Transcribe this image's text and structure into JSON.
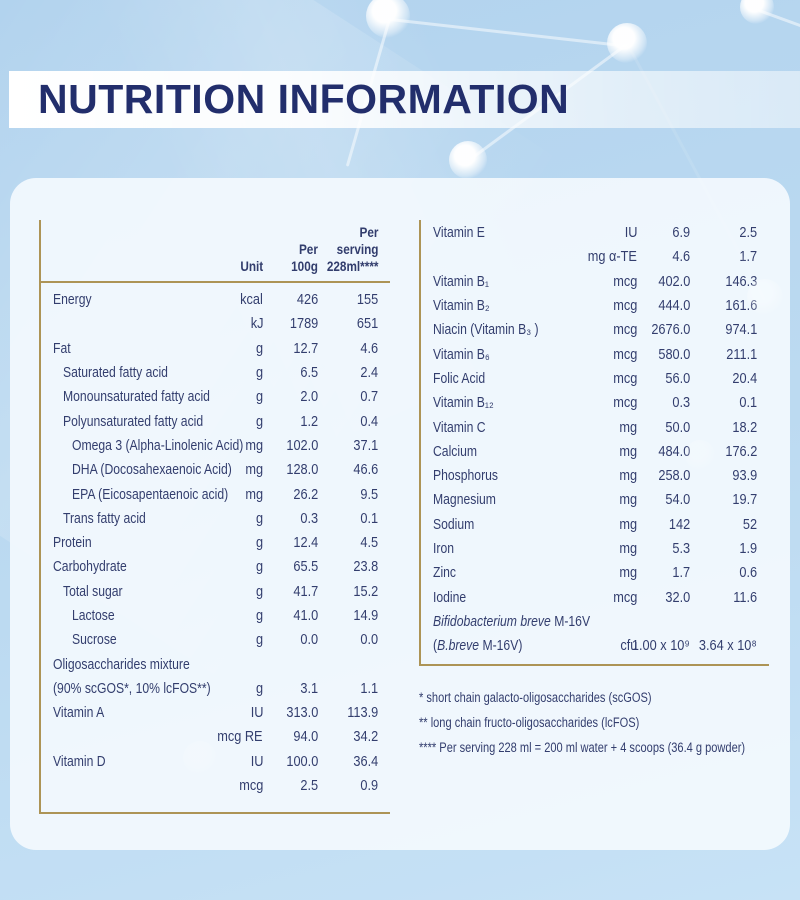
{
  "title": "NUTRITION INFORMATION",
  "colors": {
    "title_navy": "#222e6c",
    "text_navy": "#333e6e",
    "gold_rule": "#ad9456",
    "background_blue": "#bcdaf1",
    "card": "#f6fafe"
  },
  "left_table": {
    "headers": {
      "unit": "Unit",
      "per100": "Per\n100g",
      "serving": "Per\nserving\n228ml****"
    },
    "rows": [
      {
        "label": "Energy",
        "unit": "kcal",
        "per100": "426",
        "serving": "155",
        "indent": 0
      },
      {
        "label": "",
        "unit": "kJ",
        "per100": "1789",
        "serving": "651",
        "indent": 0
      },
      {
        "label": "Fat",
        "unit": "g",
        "per100": "12.7",
        "serving": "4.6",
        "indent": 0
      },
      {
        "label": "Saturated fatty acid",
        "unit": "g",
        "per100": "6.5",
        "serving": "2.4",
        "indent": 1
      },
      {
        "label": "Monounsaturated fatty acid",
        "unit": "g",
        "per100": "2.0",
        "serving": "0.7",
        "indent": 1
      },
      {
        "label": "Polyunsaturated fatty acid",
        "unit": "g",
        "per100": "1.2",
        "serving": "0.4",
        "indent": 1
      },
      {
        "label": "Omega 3 (Alpha-Linolenic Acid)",
        "unit": "mg",
        "per100": "102.0",
        "serving": "37.1",
        "indent": 2
      },
      {
        "label": "DHA (Docosahexaenoic Acid)",
        "unit": "mg",
        "per100": "128.0",
        "serving": "46.6",
        "indent": 2
      },
      {
        "label": "EPA (Eicosapentaenoic acid)",
        "unit": "mg",
        "per100": "26.2",
        "serving": "9.5",
        "indent": 2
      },
      {
        "label": "Trans fatty acid",
        "unit": "g",
        "per100": "0.3",
        "serving": "0.1",
        "indent": 1
      },
      {
        "label": "Protein",
        "unit": "g",
        "per100": "12.4",
        "serving": "4.5",
        "indent": 0
      },
      {
        "label": "Carbohydrate",
        "unit": "g",
        "per100": "65.5",
        "serving": "23.8",
        "indent": 0
      },
      {
        "label": "Total sugar",
        "unit": "g",
        "per100": "41.7",
        "serving": "15.2",
        "indent": 1
      },
      {
        "label": "Lactose",
        "unit": "g",
        "per100": "41.0",
        "serving": "14.9",
        "indent": 2
      },
      {
        "label": "Sucrose",
        "unit": "g",
        "per100": "0.0",
        "serving": "0.0",
        "indent": 2
      },
      {
        "label": "Oligosaccharides mixture",
        "unit": "",
        "per100": "",
        "serving": "",
        "indent": 0
      },
      {
        "label": "(90% scGOS*, 10% lcFOS**)",
        "unit": "g",
        "per100": "3.1",
        "serving": "1.1",
        "indent": 0
      },
      {
        "label": "Vitamin A",
        "unit": "IU",
        "per100": "313.0",
        "serving": "113.9",
        "indent": 0
      },
      {
        "label": "",
        "unit": "mcg RE",
        "per100": "94.0",
        "serving": "34.2",
        "indent": 0
      },
      {
        "label": "Vitamin D",
        "unit": "IU",
        "per100": "100.0",
        "serving": "36.4",
        "indent": 0
      },
      {
        "label": "",
        "unit": "mcg",
        "per100": "2.5",
        "serving": "0.9",
        "indent": 0
      }
    ]
  },
  "right_table": {
    "rows": [
      {
        "label": "Vitamin E",
        "unit": "IU",
        "per100": "6.9",
        "serving": "2.5",
        "indent": 0
      },
      {
        "label": "",
        "unit": "mg α-TE",
        "per100": "4.6",
        "serving": "1.7",
        "indent": 0
      },
      {
        "label": "Vitamin B₁",
        "unit": "mcg",
        "per100": "402.0",
        "serving": "146.3",
        "indent": 0
      },
      {
        "label": "Vitamin B₂",
        "unit": "mcg",
        "per100": "444.0",
        "serving": "161.6",
        "indent": 0
      },
      {
        "label": "Niacin (Vitamin B₃ )",
        "unit": "mcg",
        "per100": "2676.0",
        "serving": "974.1",
        "indent": 0
      },
      {
        "label": "Vitamin B₆",
        "unit": "mcg",
        "per100": "580.0",
        "serving": "211.1",
        "indent": 0
      },
      {
        "label": "Folic Acid",
        "unit": "mcg",
        "per100": "56.0",
        "serving": "20.4",
        "indent": 0
      },
      {
        "label": "Vitamin B₁₂",
        "unit": "mcg",
        "per100": "0.3",
        "serving": "0.1",
        "indent": 0
      },
      {
        "label": "Vitamin C",
        "unit": "mg",
        "per100": "50.0",
        "serving": "18.2",
        "indent": 0
      },
      {
        "label": "Calcium",
        "unit": "mg",
        "per100": "484.0",
        "serving": "176.2",
        "indent": 0
      },
      {
        "label": "Phosphorus",
        "unit": "mg",
        "per100": "258.0",
        "serving": "93.9",
        "indent": 0
      },
      {
        "label": "Magnesium",
        "unit": "mg",
        "per100": "54.0",
        "serving": "19.7",
        "indent": 0
      },
      {
        "label": "Sodium",
        "unit": "mg",
        "per100": "142",
        "serving": "52",
        "indent": 0
      },
      {
        "label": "Iron",
        "unit": "mg",
        "per100": "5.3",
        "serving": "1.9",
        "indent": 0
      },
      {
        "label": "Zinc",
        "unit": "mg",
        "per100": "1.7",
        "serving": "0.6",
        "indent": 0
      },
      {
        "label": "Iodine",
        "unit": "mcg",
        "per100": "32.0",
        "serving": "11.6",
        "indent": 0
      },
      {
        "label": [
          {
            "t": "Bifidobacterium breve",
            "i": true
          },
          {
            "t": " M-16V"
          }
        ],
        "unit": "",
        "per100": "",
        "serving": "",
        "indent": 0
      },
      {
        "label": [
          {
            "t": "("
          },
          {
            "t": "B.breve",
            "i": true
          },
          {
            "t": " M-16V)"
          }
        ],
        "unit": "cfu",
        "per100": "1.00 x 10⁹",
        "serving": "3.64 x 10⁸",
        "indent": 0
      }
    ]
  },
  "footnotes": [
    "* short chain galacto-oligosaccharides (scGOS)",
    "** long chain fructo-oligosaccharides (lcFOS)",
    "**** Per serving 228 ml = 200 ml water + 4 scoops (36.4 g powder)"
  ]
}
